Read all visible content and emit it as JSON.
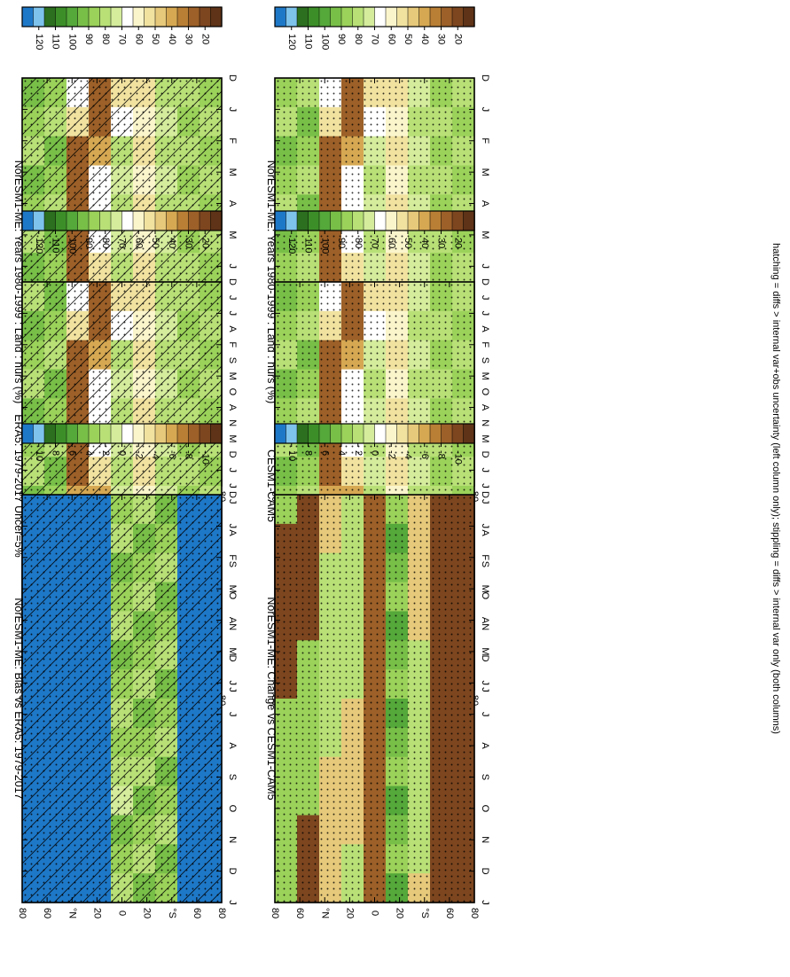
{
  "figure": {
    "footnote": "hatching = diffs > internal var+obs uncertainty (left column only); stippling = diffs > internal var only (both columns)"
  },
  "colors": {
    "abs_scale": [
      "#1e78c8",
      "#7dc3ec",
      "#2c6f1f",
      "#3c8f28",
      "#55a83a",
      "#78bf48",
      "#9bd25a",
      "#b8e077",
      "#d4ec9c",
      "#ffffff",
      "#fbf5cc",
      "#f1e2a0",
      "#e6c97a",
      "#d6a852",
      "#b97f35",
      "#9c6028",
      "#7d461f",
      "#5e3317"
    ],
    "diff_scale": [
      "#1e78c8",
      "#7dc3ec",
      "#2c6f1f",
      "#3c8f28",
      "#55a83a",
      "#78bf48",
      "#9bd25a",
      "#b8e077",
      "#d4ec9c",
      "#ffffff",
      "#fbf5cc",
      "#f1e2a0",
      "#e6c97a",
      "#d6a852",
      "#b97f35",
      "#9c6028",
      "#7d461f",
      "#5e3317"
    ]
  },
  "chart_data": [
    {
      "type": "heatmap",
      "title": "NorESM1-ME: Years 1980-1999 : Land : hurs (%)",
      "x": [
        "D",
        "J",
        "F",
        "M",
        "A",
        "M",
        "J",
        "J",
        "A",
        "S",
        "O",
        "N",
        "D",
        "J"
      ],
      "y_ticks": [
        "80",
        "60",
        "°N",
        "20",
        "0",
        "20",
        "°S",
        "60",
        "80"
      ],
      "colorbar_ticks": [
        "120",
        "110",
        "100",
        "90",
        "80",
        "70",
        "60",
        "50",
        "40",
        "30",
        "20"
      ],
      "overlay": "hatching and stippling"
    },
    {
      "type": "heatmap",
      "title": "NorESM1-ME: Years 1980-1999 : Land : hurs (%)",
      "x": [
        "D",
        "J",
        "F",
        "M",
        "A",
        "M",
        "J",
        "J",
        "A",
        "S",
        "O",
        "N",
        "D",
        "J"
      ],
      "y_ticks": [
        "80",
        "60",
        "°N",
        "20",
        "0",
        "20",
        "°S",
        "60",
        "80"
      ],
      "colorbar_ticks": [
        "120",
        "110",
        "100",
        "90",
        "80",
        "70",
        "60",
        "50",
        "40",
        "30",
        "20"
      ],
      "overlay": "stippling"
    },
    {
      "type": "heatmap",
      "title": "ERA5: 1979-2017 Uncer=5%",
      "x": [
        "D",
        "J",
        "F",
        "M",
        "A",
        "M",
        "J",
        "J",
        "A",
        "S",
        "O",
        "N",
        "D",
        "J"
      ],
      "y_ticks": [
        "80",
        "60",
        "°N",
        "20",
        "0",
        "20",
        "°S",
        "60",
        "80"
      ],
      "colorbar_ticks": [
        "120",
        "110",
        "100",
        "90",
        "80",
        "70",
        "60",
        "50",
        "40",
        "30",
        "20"
      ],
      "overlay": "hatching and stippling"
    },
    {
      "type": "heatmap",
      "title": "CESM1-CAM5",
      "x": [
        "D",
        "J",
        "F",
        "M",
        "A",
        "M",
        "J",
        "J",
        "A",
        "S",
        "O",
        "N",
        "D",
        "J"
      ],
      "y_ticks": [
        "80",
        "60",
        "°N",
        "20",
        "0",
        "20",
        "°S",
        "60",
        "80"
      ],
      "colorbar_ticks": [
        "120",
        "110",
        "100",
        "90",
        "80",
        "70",
        "60",
        "50",
        "40",
        "30",
        "20"
      ],
      "overlay": "stippling"
    },
    {
      "type": "heatmap",
      "title": "NorESM1-ME: Bias vs ERA5: 1979-2017",
      "x": [
        "D",
        "J",
        "F",
        "M",
        "A",
        "M",
        "J",
        "J",
        "A",
        "S",
        "O",
        "N",
        "D",
        "J"
      ],
      "y_ticks": [
        "80",
        "60",
        "°N",
        "20",
        "0",
        "20",
        "°S",
        "60",
        "80"
      ],
      "colorbar_ticks": [
        "10",
        "8",
        "6",
        "4",
        "2",
        "0",
        "-2",
        "-4",
        "-6",
        "-8",
        "-10"
      ],
      "overlay": "hatching and stippling"
    },
    {
      "type": "heatmap",
      "title": "NorESM1-ME: Change vs CESM1-CAM5",
      "x": [
        "D",
        "J",
        "F",
        "M",
        "A",
        "M",
        "J",
        "J",
        "A",
        "S",
        "O",
        "N",
        "D",
        "J"
      ],
      "y_ticks": [
        "80",
        "60",
        "°N",
        "20",
        "0",
        "20",
        "°S",
        "60",
        "80"
      ],
      "colorbar_ticks": [
        "10",
        "8",
        "6",
        "4",
        "2",
        "0",
        "-2",
        "-4",
        "-6",
        "-8",
        "-10"
      ],
      "overlay": "stippling"
    }
  ]
}
